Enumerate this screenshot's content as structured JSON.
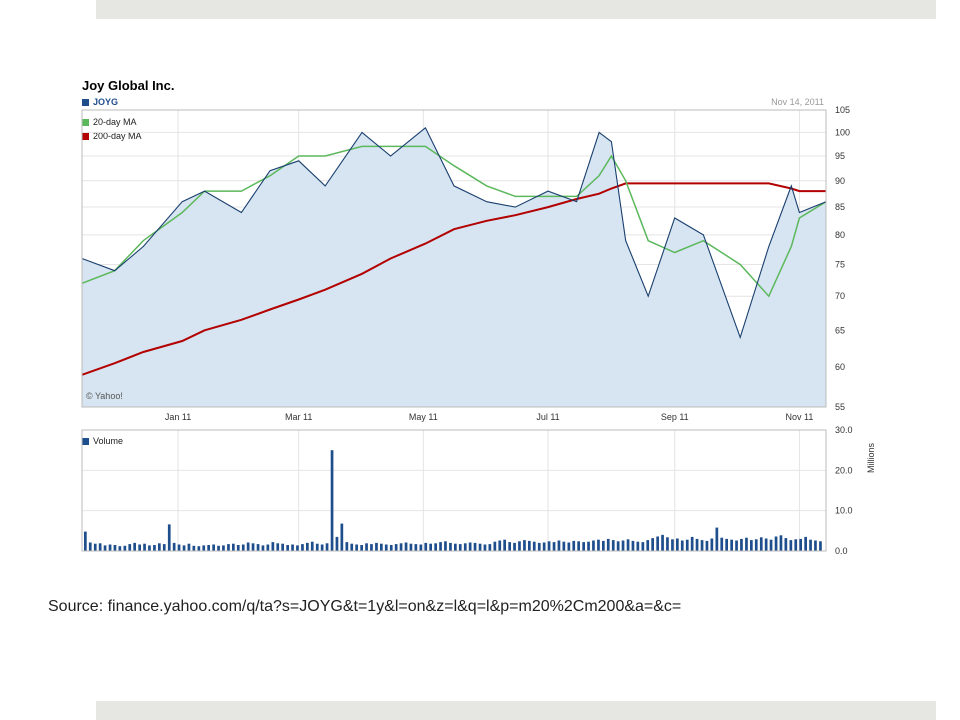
{
  "source_text": "Source: finance.yahoo.com/q/ta?s=JOYG&t=1y&l=on&z=l&q=l&p=m20%2Cm200&a=&c=",
  "chart_data": [
    {
      "type": "line",
      "title": "Joy Global Inc.",
      "date": "Nov 14, 2011",
      "credit": "© Yahoo!",
      "x_tick_labels": [
        "Jan 11",
        "Mar 11",
        "May 11",
        "Jul 11",
        "Sep 11",
        "Nov 11"
      ],
      "y_ticks": [
        55,
        60,
        65,
        70,
        75,
        80,
        85,
        90,
        95,
        100,
        105
      ],
      "ylim": [
        55,
        105
      ],
      "yscale": "log",
      "grid": true,
      "legend_position": "top-left",
      "x_dates": [
        "2010-11-15",
        "2010-12-01",
        "2010-12-15",
        "2011-01-03",
        "2011-01-14",
        "2011-02-01",
        "2011-02-15",
        "2011-03-01",
        "2011-03-14",
        "2011-04-01",
        "2011-04-15",
        "2011-05-02",
        "2011-05-16",
        "2011-06-01",
        "2011-06-15",
        "2011-07-01",
        "2011-07-15",
        "2011-07-26",
        "2011-08-01",
        "2011-08-08",
        "2011-08-19",
        "2011-09-01",
        "2011-09-15",
        "2011-10-03",
        "2011-10-17",
        "2011-10-28",
        "2011-11-01",
        "2011-11-14"
      ],
      "series": [
        {
          "name": "JOYG",
          "color": "#1a3f6e",
          "values": [
            76,
            74,
            78,
            86,
            88,
            84,
            92,
            94,
            89,
            100,
            95,
            101,
            89,
            86,
            85,
            88,
            86,
            100,
            98,
            79,
            70,
            83,
            80,
            64,
            78,
            89,
            84,
            86
          ]
        },
        {
          "name": "20-day MA",
          "color": "#5cb85c",
          "values": [
            72,
            74,
            79,
            84,
            88,
            88,
            91,
            95,
            95,
            97,
            97,
            97,
            93,
            89,
            87,
            87,
            87,
            91,
            95,
            90,
            79,
            77,
            79,
            75,
            70,
            78,
            83,
            86
          ]
        },
        {
          "name": "200-day MA",
          "color": "#b30000",
          "values": [
            59,
            60.5,
            62,
            63.5,
            65,
            66.5,
            68,
            69.5,
            71,
            73.5,
            76,
            78.5,
            81,
            82.5,
            83.5,
            85,
            86.5,
            87.5,
            88.5,
            89.5,
            89.5,
            89.5,
            89.5,
            89.5,
            89.5,
            88.5,
            88,
            88
          ]
        }
      ]
    },
    {
      "type": "bar",
      "legend": "Volume",
      "y_unit_label": "Millions",
      "y_ticks": [
        "30.0",
        "20.0",
        "10.0",
        "0.0"
      ],
      "ylim": [
        0,
        30
      ],
      "x_tick_labels": [
        "Jan 11",
        "Mar 11",
        "May 11",
        "Jul 11",
        "Sep 11",
        "Nov 11"
      ],
      "series_color": "#1f4e8c",
      "values": [
        4.8,
        2.1,
        1.8,
        1.9,
        1.4,
        1.6,
        1.5,
        1.2,
        1.3,
        1.7,
        2.0,
        1.6,
        1.8,
        1.4,
        1.5,
        1.9,
        1.7,
        6.6,
        2.0,
        1.6,
        1.4,
        1.8,
        1.3,
        1.2,
        1.4,
        1.5,
        1.6,
        1.3,
        1.4,
        1.7,
        1.8,
        1.5,
        1.6,
        2.1,
        1.9,
        1.7,
        1.4,
        1.6,
        2.2,
        1.9,
        1.8,
        1.5,
        1.6,
        1.4,
        1.7,
        2.0,
        2.3,
        1.8,
        1.6,
        1.9,
        25.0,
        3.5,
        6.8,
        2.2,
        1.8,
        1.6,
        1.5,
        1.9,
        1.7,
        2.0,
        1.8,
        1.6,
        1.5,
        1.7,
        1.9,
        2.1,
        1.8,
        1.7,
        1.6,
        2.0,
        1.8,
        1.9,
        2.2,
        2.4,
        2.0,
        1.8,
        1.7,
        1.9,
        2.1,
        2.0,
        1.8,
        1.6,
        1.7,
        2.3,
        2.6,
        2.8,
        2.2,
        2.0,
        2.4,
        2.7,
        2.5,
        2.3,
        2.0,
        2.1,
        2.4,
        2.2,
        2.6,
        2.3,
        2.1,
        2.5,
        2.4,
        2.2,
        2.3,
        2.6,
        2.8,
        2.5,
        3.0,
        2.7,
        2.4,
        2.6,
        2.9,
        2.5,
        2.3,
        2.2,
        2.7,
        3.2,
        3.6,
        4.0,
        3.4,
        2.9,
        3.1,
        2.6,
        2.8,
        3.5,
        3.0,
        2.7,
        2.5,
        3.1,
        5.8,
        3.3,
        3.0,
        2.8,
        2.6,
        3.0,
        3.3,
        2.7,
        2.9,
        3.4,
        3.1,
        2.8,
        3.6,
        3.9,
        3.2,
        2.7,
        2.9,
        3.0,
        3.5,
        2.8,
        2.6,
        2.4
      ]
    }
  ]
}
